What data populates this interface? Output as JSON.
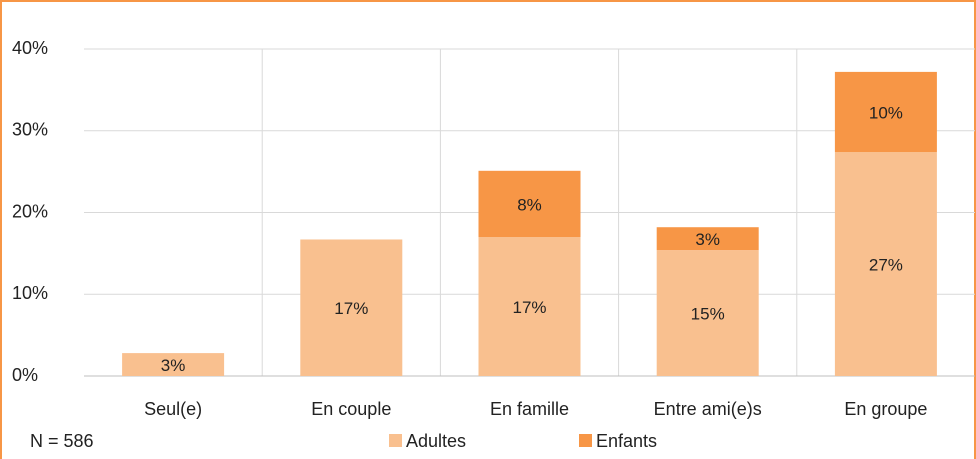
{
  "chart_data": {
    "type": "stacked_bar",
    "categories": [
      "Seul(e)",
      "En couple",
      "En famille",
      "Entre ami(e)s",
      "En groupe"
    ],
    "series": [
      {
        "name": "Adultes",
        "color": "#f9c08f",
        "values": [
          2.8,
          16.7,
          17,
          15.4,
          27.4
        ],
        "value_labels": [
          "3%",
          "17%",
          "17%",
          "15%",
          "27%"
        ]
      },
      {
        "name": "Enfants",
        "color": "#f79646",
        "values": [
          null,
          null,
          8.1,
          2.8,
          9.8
        ],
        "value_labels": [
          null,
          null,
          "8%",
          "3%",
          "10%"
        ]
      }
    ],
    "ylim": [
      0,
      40
    ],
    "yticks": [
      {
        "value": 0,
        "label": "0%"
      },
      {
        "value": 10,
        "label": "10%"
      },
      {
        "value": 20,
        "label": "20%"
      },
      {
        "value": 30,
        "label": "30%"
      },
      {
        "value": 40,
        "label": "40%"
      }
    ],
    "grid": true,
    "annotation": "N = 586"
  }
}
